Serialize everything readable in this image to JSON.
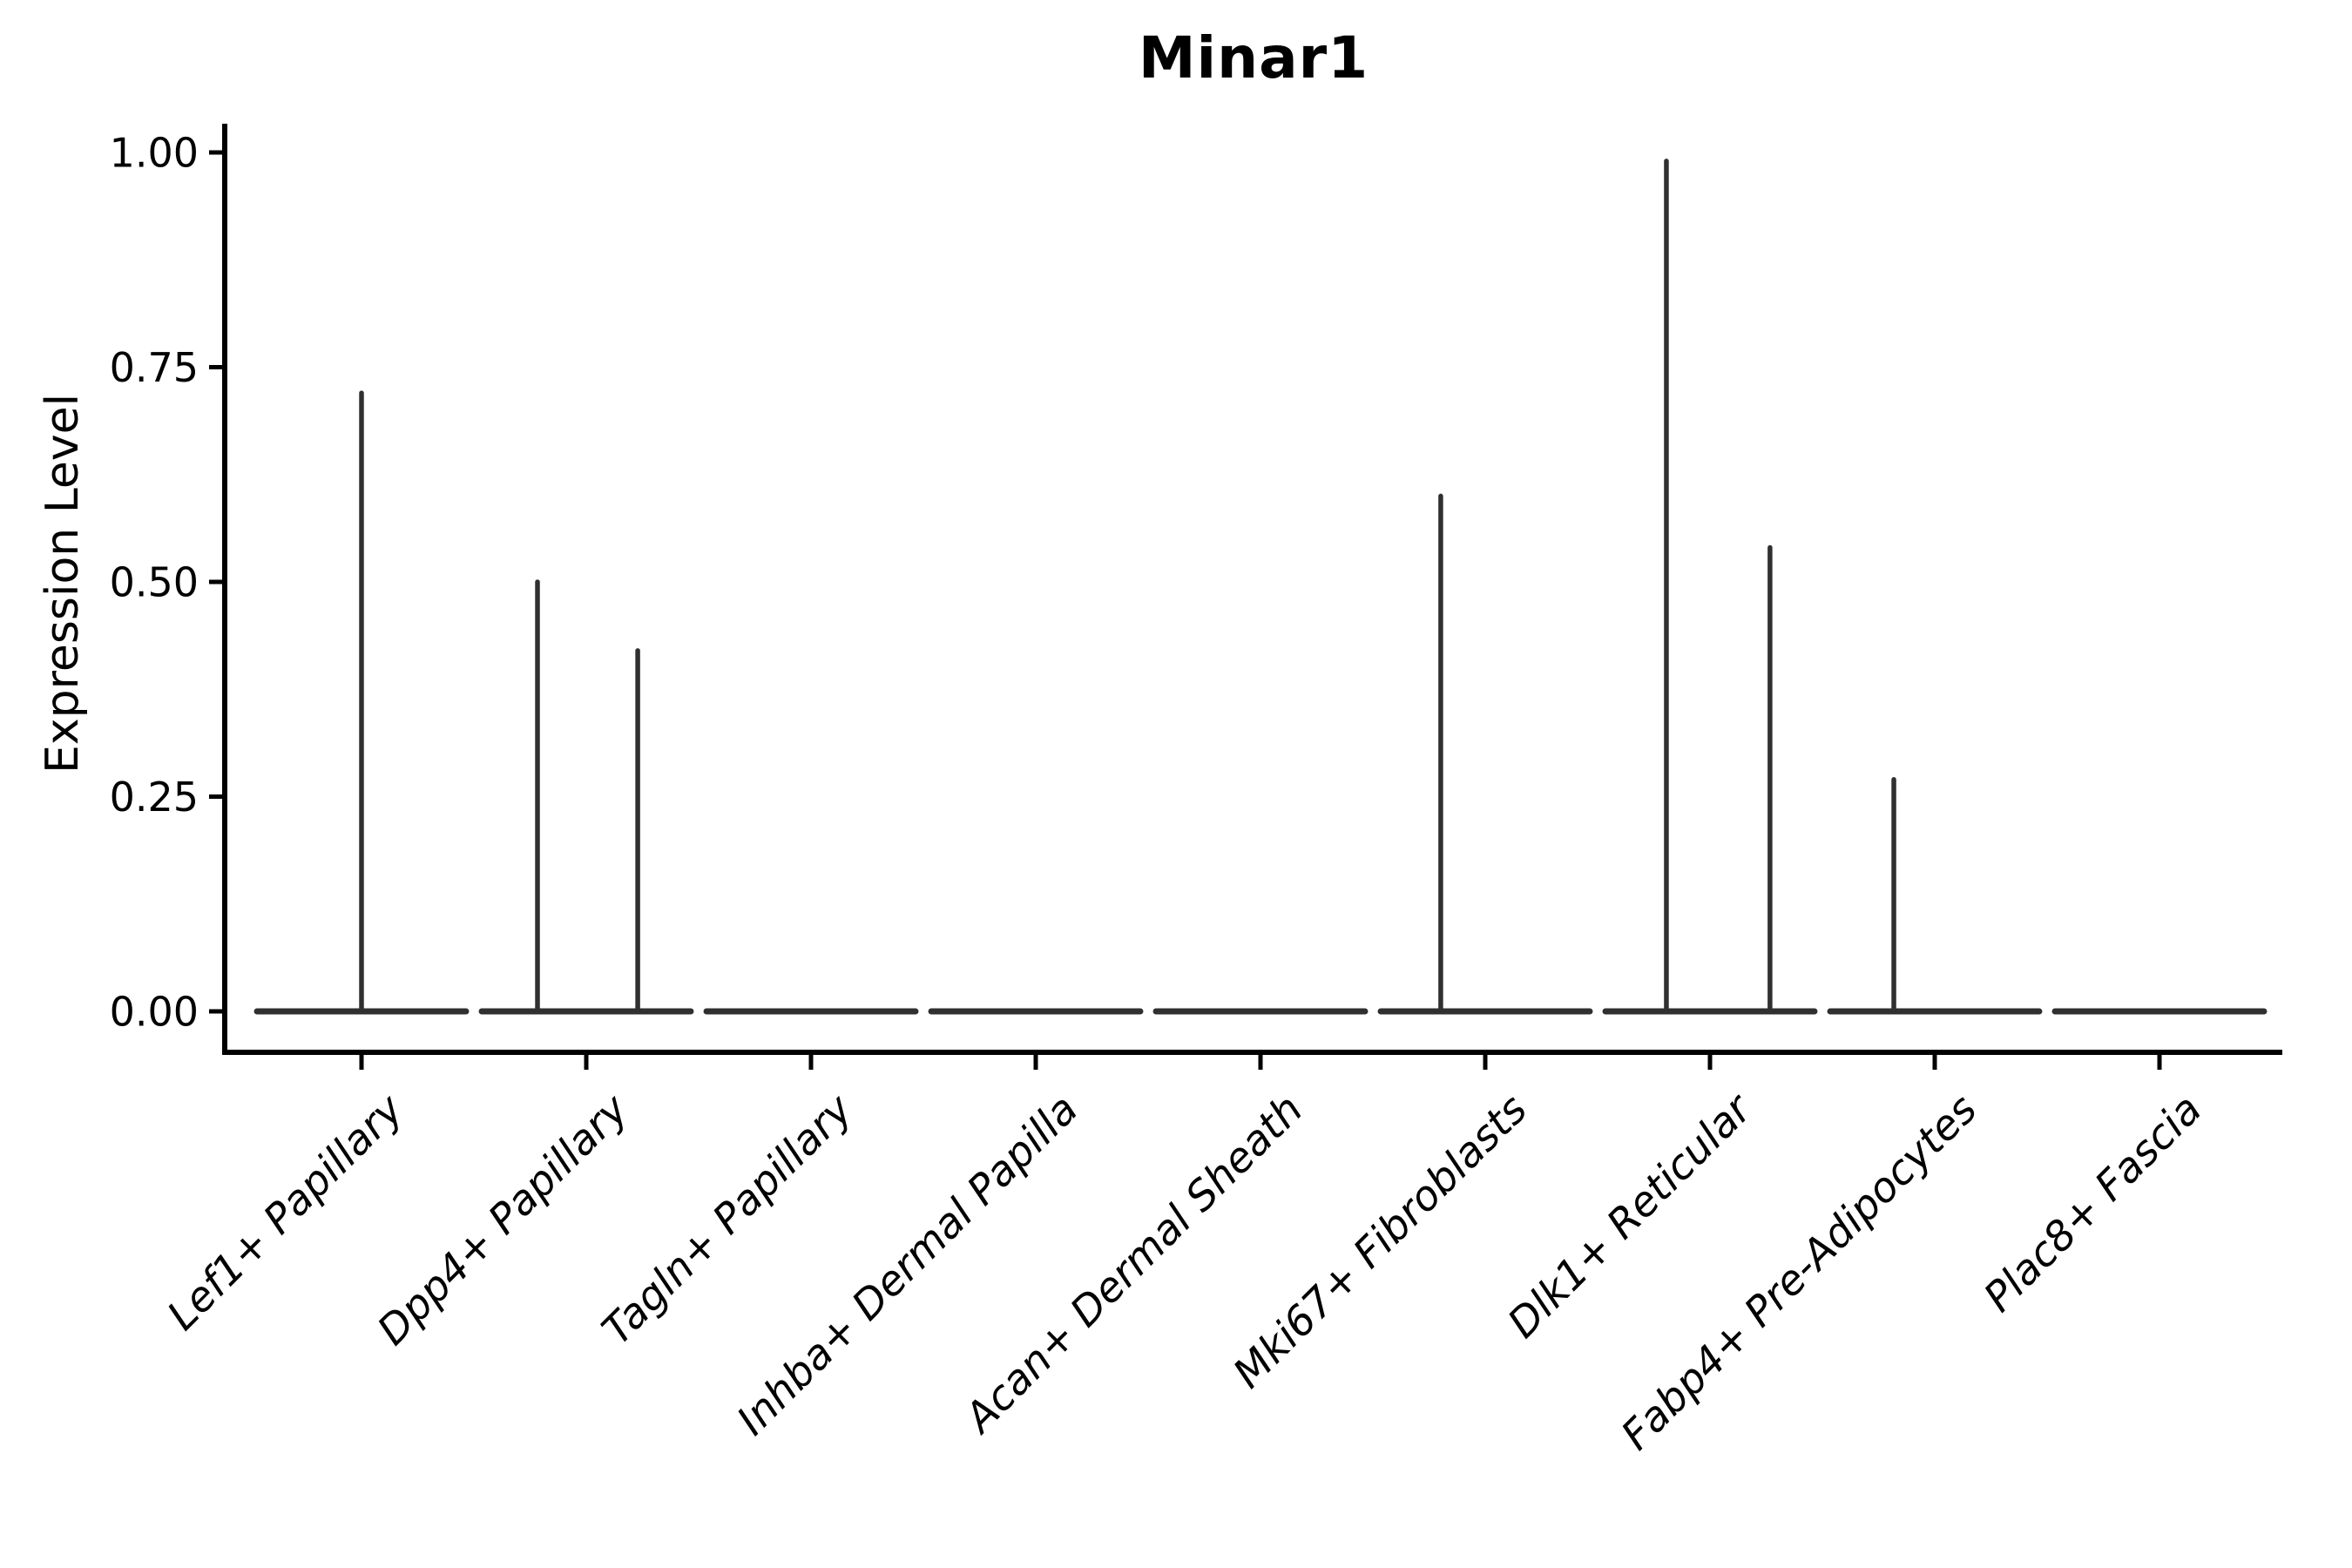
{
  "title": "Minar1",
  "y_axis": {
    "label": "Expression Level",
    "ticks": [
      {
        "label": "1.00",
        "value": 1.0
      },
      {
        "label": "0.75",
        "value": 0.75
      },
      {
        "label": "0.50",
        "value": 0.5
      },
      {
        "label": "0.25",
        "value": 0.25
      },
      {
        "label": "0.00",
        "value": 0.0
      }
    ],
    "range": [
      0.0,
      1.0
    ]
  },
  "colors": {
    "violin_stroke": "#303030",
    "axis_stroke": "#000000",
    "text": "#000000",
    "background": "#ffffff"
  },
  "chart_data": {
    "type": "violin",
    "title": "Minar1",
    "xlabel": "",
    "ylabel": "Expression Level",
    "ylim": [
      0.0,
      1.0
    ],
    "y_tick_labels": [
      "1.00",
      "0.75",
      "0.50",
      "0.25",
      "0.00"
    ],
    "grid": false,
    "legend": "none",
    "categories": [
      "Lef1+ Papillary",
      "Dpp4+ Papillary",
      "Tagln+ Papillary",
      "Inhba+ Dermal Papilla",
      "Acan+ Dermal Sheath",
      "Mki67+ Fibroblasts",
      "Dlk1+ Reticular",
      "Fabp4+ Pre-Adipocytes",
      "Plac8+ Fascia"
    ],
    "violins": [
      {
        "category": "Lef1+ Papillary",
        "baseline_value": 0.0,
        "half_width": 0.465,
        "spikes": [
          {
            "offset": 0.0,
            "value": 0.72
          }
        ]
      },
      {
        "category": "Dpp4+ Papillary",
        "baseline_value": 0.0,
        "half_width": 0.465,
        "spikes": [
          {
            "offset": -0.217,
            "value": 0.5
          },
          {
            "offset": 0.229,
            "value": 0.42
          }
        ]
      },
      {
        "category": "Tagln+ Papillary",
        "baseline_value": 0.0,
        "half_width": 0.465,
        "spikes": []
      },
      {
        "category": "Inhba+ Dermal Papilla",
        "baseline_value": 0.0,
        "half_width": 0.465,
        "spikes": []
      },
      {
        "category": "Acan+ Dermal Sheath",
        "baseline_value": 0.0,
        "half_width": 0.465,
        "spikes": []
      },
      {
        "category": "Mki67+ Fibroblasts",
        "baseline_value": 0.0,
        "half_width": 0.465,
        "spikes": [
          {
            "offset": -0.198,
            "value": 0.6
          }
        ]
      },
      {
        "category": "Dlk1+ Reticular",
        "baseline_value": 0.0,
        "half_width": 0.465,
        "spikes": [
          {
            "offset": -0.194,
            "value": 0.99
          },
          {
            "offset": 0.267,
            "value": 0.54
          }
        ]
      },
      {
        "category": "Fabp4+ Pre-Adipocytes",
        "baseline_value": 0.0,
        "half_width": 0.465,
        "spikes": [
          {
            "offset": -0.182,
            "value": 0.27
          }
        ]
      },
      {
        "category": "Plac8+ Fascia",
        "baseline_value": 0.0,
        "half_width": 0.465,
        "spikes": []
      }
    ]
  }
}
